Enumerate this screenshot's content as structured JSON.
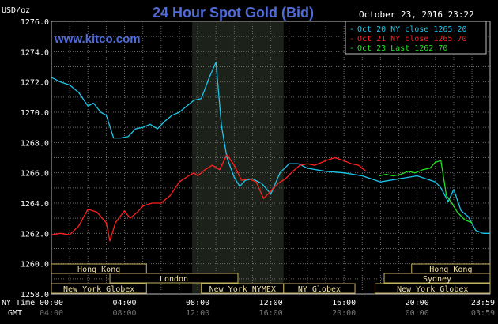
{
  "header": {
    "unit": "USD/oz",
    "title": "24 Hour Spot Gold (Bid)",
    "timestamp": "October 23, 2016 23:22",
    "site": "www.kitco.com"
  },
  "chart_data": {
    "type": "line",
    "ylim": [
      1258,
      1276
    ],
    "y_ticks": [
      "1276.0",
      "1274.0",
      "1272.0",
      "1270.0",
      "1268.0",
      "1266.0",
      "1264.0",
      "1262.0",
      "1260.0",
      "1258.0"
    ],
    "x_labels_ny": [
      "00:00",
      "04:00",
      "08:00",
      "12:00",
      "16:00",
      "20:00",
      "23:59"
    ],
    "x_labels_gmt": [
      "04:00",
      "08:00",
      "12:00",
      "16:00",
      "20:00",
      "00:00",
      "03:59"
    ],
    "axis_label_ny": "NY Time",
    "axis_label_gmt": "GMT",
    "grid": true,
    "legend_position": "top-right",
    "highlight_range_hours": [
      7.7,
      12.7
    ],
    "series": [
      {
        "name": "Oct 20 NY close 1265.20",
        "color": "#19c7ec",
        "x": [
          0,
          0.5,
          1,
          1.5,
          2,
          2.3,
          2.7,
          3,
          3.4,
          3.8,
          4.2,
          4.6,
          5,
          5.4,
          5.8,
          6.2,
          6.6,
          7,
          7.4,
          7.8,
          8.2,
          8.6,
          9,
          9.3,
          9.6,
          10,
          10.3,
          10.6,
          11,
          11.5,
          12,
          12.5,
          13,
          13.5,
          14,
          15,
          16,
          17,
          18,
          19,
          20,
          21,
          21.3,
          21.7,
          22,
          22.4,
          22.8,
          23.2,
          23.6,
          23.99
        ],
        "y": [
          1272.3,
          1272,
          1271.8,
          1271.3,
          1270.4,
          1270.6,
          1270,
          1269.8,
          1268.3,
          1268.3,
          1268.4,
          1268.9,
          1269,
          1269.2,
          1268.9,
          1269.4,
          1269.8,
          1270,
          1270.4,
          1270.8,
          1270.9,
          1272.2,
          1273.3,
          1269.1,
          1267,
          1265.7,
          1265.1,
          1265.5,
          1265.6,
          1265.3,
          1264.6,
          1266,
          1266.6,
          1266.6,
          1266.3,
          1266.1,
          1266,
          1265.8,
          1265.4,
          1265.6,
          1265.8,
          1265.4,
          1265,
          1264.1,
          1264.9,
          1263.5,
          1263.1,
          1262.2,
          1262,
          1262
        ]
      },
      {
        "name": "Oct 21 NY close 1265.70",
        "color": "#ff2020",
        "x": [
          0,
          0.5,
          1,
          1.5,
          2,
          2.5,
          3,
          3.2,
          3.5,
          4,
          4.3,
          4.7,
          5,
          5.5,
          6,
          6.5,
          7,
          7.5,
          7.8,
          8,
          8.4,
          8.8,
          9.2,
          9.6,
          10,
          10.4,
          10.8,
          11.2,
          11.6,
          12,
          12.4,
          12.8,
          13.2,
          13.6,
          14,
          14.4,
          15,
          15.5,
          16,
          16.4,
          16.8,
          17.2
        ],
        "y": [
          1261.9,
          1262,
          1261.9,
          1262.5,
          1263.6,
          1263.4,
          1262.7,
          1261.5,
          1262.7,
          1263.5,
          1263,
          1263.4,
          1263.8,
          1264,
          1264,
          1264.5,
          1265.4,
          1265.8,
          1266,
          1265.8,
          1266.2,
          1266.5,
          1266.2,
          1267.2,
          1266.5,
          1265.5,
          1265.6,
          1265.4,
          1264.3,
          1264.8,
          1265.3,
          1265.6,
          1266.1,
          1266.5,
          1266.6,
          1266.5,
          1266.8,
          1267,
          1266.8,
          1266.6,
          1266.5,
          1266.1
        ]
      },
      {
        "name": "Oct 23 Last 1262.70",
        "color": "#22e022",
        "x": [
          17.9,
          18.3,
          18.7,
          19.1,
          19.5,
          19.9,
          20.3,
          20.7,
          21,
          21.3,
          21.6,
          21.9,
          22.2,
          22.6,
          23
        ],
        "y": [
          1265.8,
          1265.9,
          1265.8,
          1265.9,
          1266.1,
          1266,
          1266.2,
          1266.3,
          1266.7,
          1266.8,
          1264.5,
          1264,
          1263.4,
          1262.9,
          1262.7
        ]
      }
    ]
  },
  "sessions": [
    {
      "label": "Hong Kong",
      "start": 0,
      "end": 5.2,
      "row": 0
    },
    {
      "label": "London",
      "start": 3.2,
      "end": 10.2,
      "row": 1
    },
    {
      "label": "New York Globex",
      "start": 0,
      "end": 5.2,
      "row": 2
    },
    {
      "label": "New York NYMEX",
      "start": 8.2,
      "end": 12.7,
      "row": 2
    },
    {
      "label": "NY Globex",
      "start": 12.7,
      "end": 16.6,
      "row": 2
    },
    {
      "label": "Hong Kong",
      "start": 19.7,
      "end": 23.99,
      "row": 0
    },
    {
      "label": "Sydney",
      "start": 18.2,
      "end": 23.99,
      "row": 1
    },
    {
      "label": "New York Globex",
      "start": 17.7,
      "end": 23.99,
      "row": 2
    }
  ]
}
